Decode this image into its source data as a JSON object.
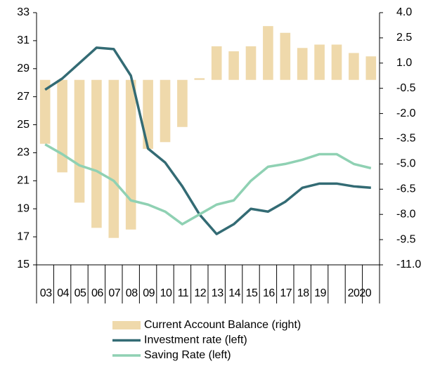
{
  "chart_data": {
    "type": "bar",
    "categories": [
      "03",
      "04",
      "05",
      "06",
      "07",
      "08",
      "09",
      "10",
      "11",
      "12",
      "13",
      "14",
      "15",
      "16",
      "17",
      "18",
      "19",
      null,
      "2020",
      null
    ],
    "series": [
      {
        "name": "Current Account Balance (right)",
        "type": "bar",
        "axis": "y2",
        "color": "#efd9ab",
        "values": [
          -3.8,
          -5.5,
          -7.3,
          -8.8,
          -9.4,
          -8.9,
          -4.1,
          -3.7,
          -2.8,
          0.1,
          2.0,
          1.7,
          2.0,
          3.2,
          2.8,
          1.9,
          2.1,
          2.1,
          1.6,
          1.4
        ]
      },
      {
        "name": "Investment rate (left)",
        "type": "line",
        "color": "#336b74",
        "values": [
          27.5,
          28.3,
          29.4,
          30.5,
          30.4,
          28.5,
          23.3,
          22.3,
          20.6,
          18.6,
          17.2,
          17.9,
          19.0,
          18.8,
          19.5,
          20.5,
          20.8,
          20.8,
          20.6,
          20.5
        ]
      },
      {
        "name": "Saving Rate (left)",
        "type": "line",
        "color": "#8fd1b3",
        "values": [
          23.6,
          22.9,
          22.1,
          21.7,
          21.0,
          19.6,
          19.3,
          18.8,
          17.9,
          18.6,
          19.3,
          19.6,
          21.0,
          22.0,
          22.2,
          22.5,
          22.9,
          22.9,
          22.2,
          21.9
        ]
      }
    ],
    "ylim": [
      15,
      33
    ],
    "yticks": [
      15,
      17,
      19,
      21,
      23,
      25,
      27,
      29,
      31,
      33
    ],
    "y2lim": [
      -11,
      4
    ],
    "y2ticks": [
      {
        "value": -11,
        "label": "-11.0"
      },
      -9.5,
      {
        "value": -8,
        "label": "-8.0"
      },
      -6.5,
      {
        "value": -5,
        "label": "-5.0"
      },
      -3.5,
      {
        "value": -2,
        "label": "-2.0"
      },
      -0.5,
      {
        "value": 1,
        "label": "1.0"
      },
      2.5,
      {
        "value": 4,
        "label": "4.0"
      }
    ],
    "legend": "bottom"
  }
}
